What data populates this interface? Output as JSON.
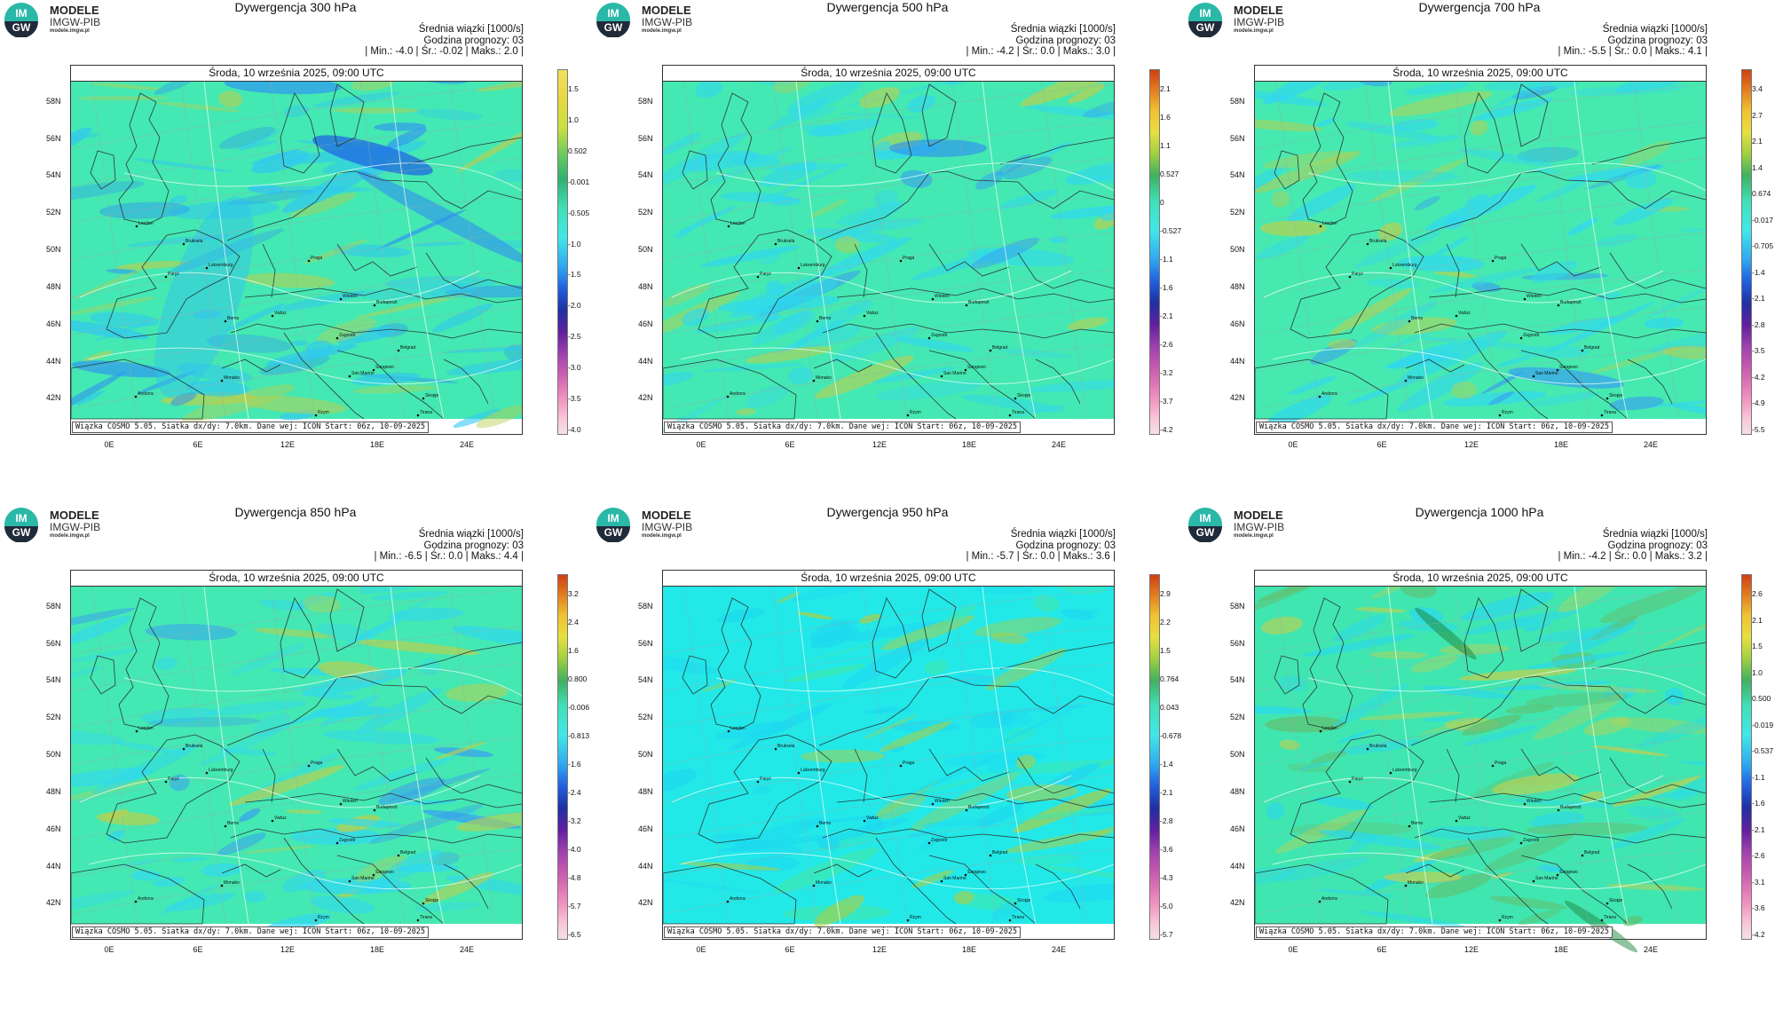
{
  "logo": {
    "name": "MODELE",
    "org": "IMGW-PIB",
    "url": "modele.imgw.pl",
    "mark_text_top": "IM",
    "mark_text_bottom": "GW"
  },
  "common": {
    "mean_label": "Średnia wiązki [1000/s]",
    "lead_label": "Godzina prognozy: 03",
    "valid_time": "Środa, 10 września 2025, 09:00 UTC",
    "credit": "Wiązka COSMO 5.05. Siatka dx/dy: 7.0km. Dane wej: ICON Start: 06z, 10-09-2025",
    "lat_labels": [
      "58N",
      "56N",
      "54N",
      "52N",
      "50N",
      "48N",
      "46N",
      "44N",
      "42N"
    ],
    "lon_labels": [
      "0E",
      "6E",
      "12E",
      "18E",
      "24E"
    ],
    "cities": [
      "London",
      "Bruksela",
      "Luksemburg",
      "Paryż",
      "Praga",
      "Wiedeń",
      "Budapeszt",
      "Berno",
      "Vaduz",
      "Zagrzeb",
      "Belgrad",
      "San Marino",
      "Monako",
      "Sarajewo",
      "Skopje",
      "Andorra",
      "Tirana",
      "Rzym"
    ]
  },
  "colors": {
    "accent_ocean": "#3ee8a8",
    "accent_field": "#40e6b0",
    "logo_teal": "#2ab8a8"
  },
  "panels": [
    {
      "title": "Dywergencja 300 hPa",
      "range_line": "| Min.: -4.0 | Śr.: -0.02 | Maks.: 2.0 |",
      "cbar_ticks": [
        "1.5",
        "1.0",
        "0.502",
        "-0.001",
        "-0.505",
        "-1.0",
        "-1.5",
        "-2.0",
        "-2.5",
        "-3.0",
        "-3.5",
        "-4.0"
      ]
    },
    {
      "title": "Dywergencja 500 hPa",
      "range_line": "| Min.: -4.2 | Śr.: 0.0 | Maks.: 3.0 |",
      "cbar_ticks": [
        "2.1",
        "1.6",
        "1.1",
        "0.527",
        "0",
        "-0.527",
        "-1.1",
        "-1.6",
        "-2.1",
        "-2.6",
        "-3.2",
        "-3.7",
        "-4.2"
      ]
    },
    {
      "title": "Dywergencja 700 hPa",
      "range_line": "| Min.: -5.5 | Śr.: 0.0 | Maks.: 4.1 |",
      "cbar_ticks": [
        "3.4",
        "2.7",
        "2.1",
        "1.4",
        "0.674",
        "-0.017",
        "-0.705",
        "-1.4",
        "-2.1",
        "-2.8",
        "-3.5",
        "-4.2",
        "-4.9",
        "-5.5"
      ]
    },
    {
      "title": "Dywergencja 850 hPa",
      "range_line": "| Min.: -6.5 | Śr.: 0.0 | Maks.: 4.4 |",
      "cbar_ticks": [
        "3.2",
        "2.4",
        "1.6",
        "0.800",
        "-0.006",
        "-0.813",
        "-1.6",
        "-2.4",
        "-3.2",
        "-4.0",
        "-4.8",
        "-5.7",
        "-6.5"
      ]
    },
    {
      "title": "Dywergencja 950 hPa",
      "range_line": "| Min.: -5.7 | Śr.: 0.0 | Maks.: 3.6 |",
      "cbar_ticks": [
        "2.9",
        "2.2",
        "1.5",
        "0.764",
        "0.043",
        "-0.678",
        "-1.4",
        "-2.1",
        "-2.8",
        "-3.6",
        "-4.3",
        "-5.0",
        "-5.7"
      ]
    },
    {
      "title": "Dywergencja 1000 hPa",
      "range_line": "| Min.: -4.2 | Śr.: 0.0 | Maks.: 3.2 |",
      "cbar_ticks": [
        "2.6",
        "2.1",
        "1.5",
        "1.0",
        "0.500",
        "-0.019",
        "-0.537",
        "-1.1",
        "-1.6",
        "-2.1",
        "-2.6",
        "-3.1",
        "-3.6",
        "-4.2"
      ]
    }
  ]
}
